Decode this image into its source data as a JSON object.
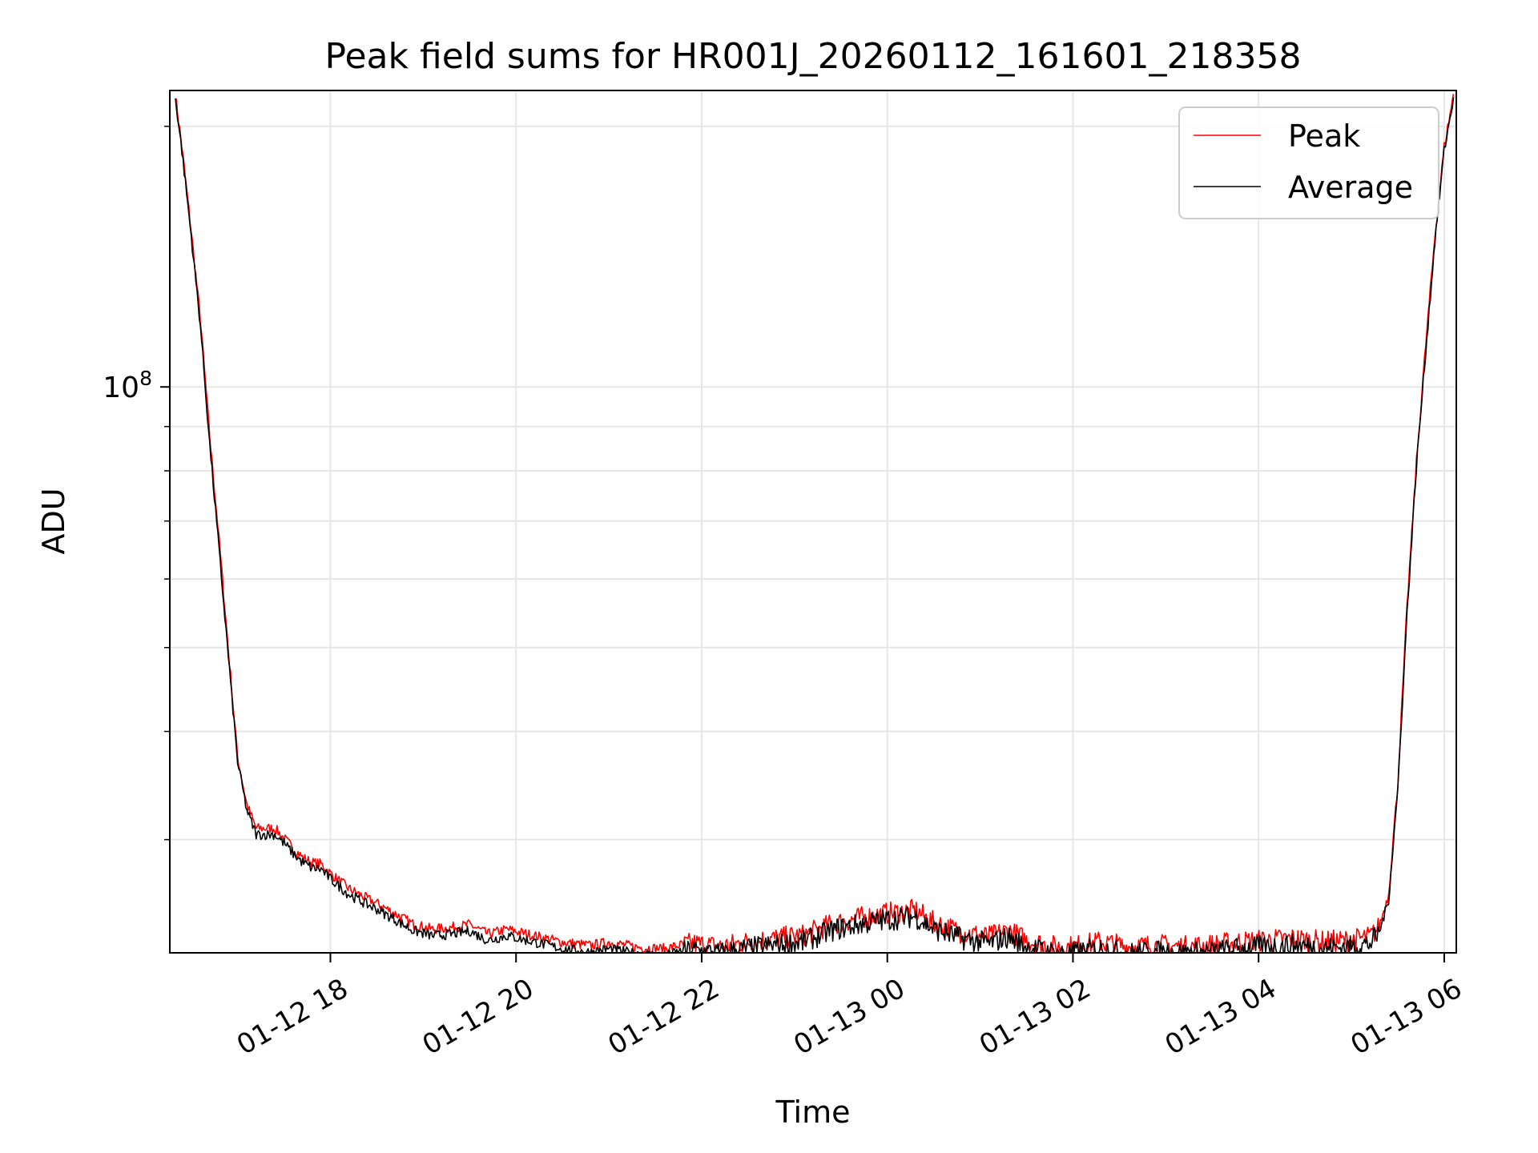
{
  "chart_data": {
    "type": "line",
    "title": "Peak field sums for HR001J_20260112_161601_218358",
    "xlabel": "Time",
    "ylabel": "ADU",
    "yscale": "log",
    "xlim": [
      16.27,
      30.13
    ],
    "ylim": [
      22200000,
      220000000
    ],
    "x_ticks": [
      {
        "value": 18,
        "label": "01-12 18"
      },
      {
        "value": 20,
        "label": "01-12 20"
      },
      {
        "value": 22,
        "label": "01-12 22"
      },
      {
        "value": 24,
        "label": "01-13 00"
      },
      {
        "value": 26,
        "label": "01-13 02"
      },
      {
        "value": 28,
        "label": "01-13 04"
      },
      {
        "value": 30,
        "label": "01-13 06"
      }
    ],
    "y_major_ticks": [
      {
        "value": 100000000,
        "label_base": "10",
        "label_exp": "8"
      }
    ],
    "y_minor_ticks": [
      30000000,
      40000000,
      50000000,
      60000000,
      70000000,
      80000000,
      90000000,
      200000000
    ],
    "grid": true,
    "legend_position": "top-right",
    "series": [
      {
        "name": "Peak",
        "color": "#ff0000",
        "x": [
          16.33,
          16.4,
          16.5,
          16.6,
          16.7,
          16.8,
          16.9,
          17.0,
          17.1,
          17.2,
          17.3,
          17.4,
          17.5,
          17.6,
          17.7,
          17.8,
          17.9,
          18.0,
          18.2,
          18.4,
          18.5,
          18.7,
          18.9,
          19.1,
          19.3,
          19.5,
          19.7,
          19.9,
          20.2,
          20.5,
          20.8,
          21.0,
          21.3,
          21.6,
          21.9,
          22.2,
          22.5,
          22.8,
          23.1,
          23.4,
          23.7,
          24.0,
          24.3,
          24.5,
          24.8,
          25.1,
          25.3,
          25.5,
          25.8,
          26.0,
          26.3,
          26.6,
          26.9,
          27.2,
          27.5,
          27.8,
          28.1,
          28.4,
          28.7,
          29.0,
          29.2,
          29.3,
          29.4,
          29.5,
          29.6,
          29.7,
          29.8,
          29.9,
          30.0,
          30.1
        ],
        "values": [
          218000000,
          190000000,
          152000000,
          120000000,
          88000000,
          67000000,
          50000000,
          37500000,
          33000000,
          31000000,
          31000000,
          31000000,
          30200000,
          29400000,
          28700000,
          28300000,
          28200000,
          27500000,
          26400000,
          25700000,
          25400000,
          24700000,
          24000000,
          23700000,
          23800000,
          24000000,
          23400000,
          23700000,
          23300000,
          22900000,
          22700000,
          22900000,
          22600000,
          22500000,
          22900000,
          22700000,
          23000000,
          23200000,
          23400000,
          24100000,
          24500000,
          24800000,
          25000000,
          24200000,
          23600000,
          23300000,
          23700000,
          23100000,
          22700000,
          22700000,
          23000000,
          22700000,
          22800000,
          22700000,
          22800000,
          23000000,
          23100000,
          23200000,
          23000000,
          23100000,
          23300000,
          23900000,
          26000000,
          35000000,
          56000000,
          82000000,
          112000000,
          150000000,
          190000000,
          218000000
        ]
      },
      {
        "name": "Average",
        "color": "#000000",
        "x": [
          16.33,
          16.4,
          16.5,
          16.6,
          16.7,
          16.8,
          16.9,
          17.0,
          17.1,
          17.2,
          17.3,
          17.4,
          17.5,
          17.6,
          17.7,
          17.8,
          17.9,
          18.0,
          18.2,
          18.4,
          18.5,
          18.7,
          18.9,
          19.1,
          19.3,
          19.5,
          19.7,
          19.9,
          20.2,
          20.5,
          20.8,
          21.0,
          21.3,
          21.6,
          21.9,
          22.2,
          22.5,
          22.8,
          23.1,
          23.4,
          23.7,
          24.0,
          24.3,
          24.5,
          24.8,
          25.1,
          25.3,
          25.5,
          25.8,
          26.0,
          26.3,
          26.6,
          26.9,
          27.2,
          27.5,
          27.8,
          28.1,
          28.4,
          28.7,
          29.0,
          29.2,
          29.3,
          29.4,
          29.5,
          29.6,
          29.7,
          29.8,
          29.9,
          30.0,
          30.1
        ],
        "values": [
          216000000,
          188000000,
          150000000,
          118000000,
          86000000,
          65000000,
          49000000,
          37000000,
          32500000,
          30500000,
          30500000,
          30500000,
          29800000,
          29000000,
          28300000,
          27900000,
          27800000,
          27100000,
          26000000,
          25300000,
          25000000,
          24300000,
          23600000,
          23300000,
          23400000,
          23600000,
          23000000,
          23300000,
          22900000,
          22500000,
          22300000,
          22500000,
          22200000,
          22100000,
          22500000,
          22300000,
          22600000,
          22800000,
          23000000,
          23700000,
          24100000,
          24400000,
          24600000,
          23800000,
          23200000,
          22900000,
          23300000,
          22700000,
          22300000,
          22300000,
          22600000,
          22300000,
          22400000,
          22300000,
          22400000,
          22600000,
          22700000,
          22800000,
          22600000,
          22700000,
          22900000,
          23500000,
          25600000,
          34400000,
          55000000,
          81000000,
          110000000,
          148000000,
          188000000,
          216000000
        ]
      }
    ]
  }
}
